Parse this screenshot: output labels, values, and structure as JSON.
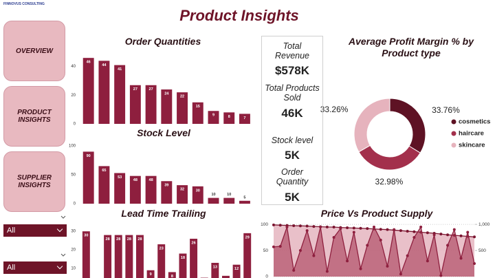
{
  "header": {
    "brand": "FINNOVUS CONSULTING",
    "title": "Product Insights"
  },
  "nav": [
    "OVERVIEW",
    "PRODUCT INSIGHTS",
    "SUPPLIER INSIGHTS"
  ],
  "filters": [
    "All",
    "All"
  ],
  "kpis": [
    {
      "label": "Total Revenue",
      "value": "$578K"
    },
    {
      "label": "Total Products Sold",
      "value": "46K"
    },
    {
      "label": "Stock level",
      "value": "5K"
    },
    {
      "label": "Order Quantity",
      "value": "5K"
    }
  ],
  "chart_data": [
    {
      "type": "bar",
      "title": "Order Quantities",
      "values": [
        46,
        44,
        41,
        27,
        27,
        24,
        22,
        15,
        9,
        8,
        7
      ],
      "color": "#8e1f3e",
      "ylim": [
        0,
        48
      ],
      "yticks": [
        0,
        20,
        40
      ]
    },
    {
      "type": "bar",
      "title": "Stock Level",
      "values": [
        90,
        65,
        53,
        48,
        48,
        39,
        32,
        30,
        10,
        10,
        5
      ],
      "color": "#8e1f3e",
      "ylim": [
        0,
        100
      ],
      "yticks": [
        0,
        50,
        100
      ]
    },
    {
      "type": "bar",
      "title": "Lead Time Trailing",
      "values": [
        30,
        1,
        28,
        28,
        28,
        28,
        9,
        23,
        8,
        18,
        26,
        5,
        13,
        6,
        12,
        29
      ],
      "color": "#8e1f3e",
      "ylim": [
        0,
        36
      ],
      "yticks": [
        10,
        20,
        30
      ]
    },
    {
      "type": "pie",
      "title": "Average Profit Margin % by Product type",
      "donut": true,
      "categories": [
        "cosmetics",
        "haircare",
        "skincare"
      ],
      "values": [
        33.76,
        32.98,
        33.26
      ],
      "value_labels": [
        "33.76%",
        "32.98%",
        "33.26%"
      ],
      "colors": [
        "#5e1224",
        "#a3304c",
        "#e6b3bd"
      ],
      "legend": "right"
    },
    {
      "type": "line",
      "title": "Price Vs Product Supply",
      "grid": true,
      "ylim": [
        0,
        108
      ],
      "yticks": [
        0,
        50,
        100
      ],
      "y2lim": [
        0,
        1080
      ],
      "y2ticks": [
        {
          "value": 500,
          "label": "500"
        },
        {
          "value": 1000,
          "label": "1,000"
        }
      ],
      "series": [
        {
          "color": "#e3b0bb",
          "area": true,
          "markers": true,
          "axis": "y2",
          "values": [
            990,
            985,
            980,
            975,
            972,
            968,
            960,
            955,
            950,
            948,
            940,
            935,
            930,
            925,
            920,
            912,
            905,
            900,
            890,
            880,
            870,
            860,
            850,
            840,
            830,
            815,
            800,
            790,
            780,
            770,
            760
          ]
        },
        {
          "color": "#a3304c",
          "area": true,
          "markers": true,
          "values": [
            57,
            58,
            95,
            12,
            50,
            88,
            40,
            95,
            10,
            75,
            92,
            30,
            85,
            15,
            60,
            95,
            70,
            20,
            90,
            5,
            40,
            75,
            95,
            30,
            80,
            2,
            60,
            90,
            35,
            85,
            25
          ]
        }
      ]
    }
  ]
}
